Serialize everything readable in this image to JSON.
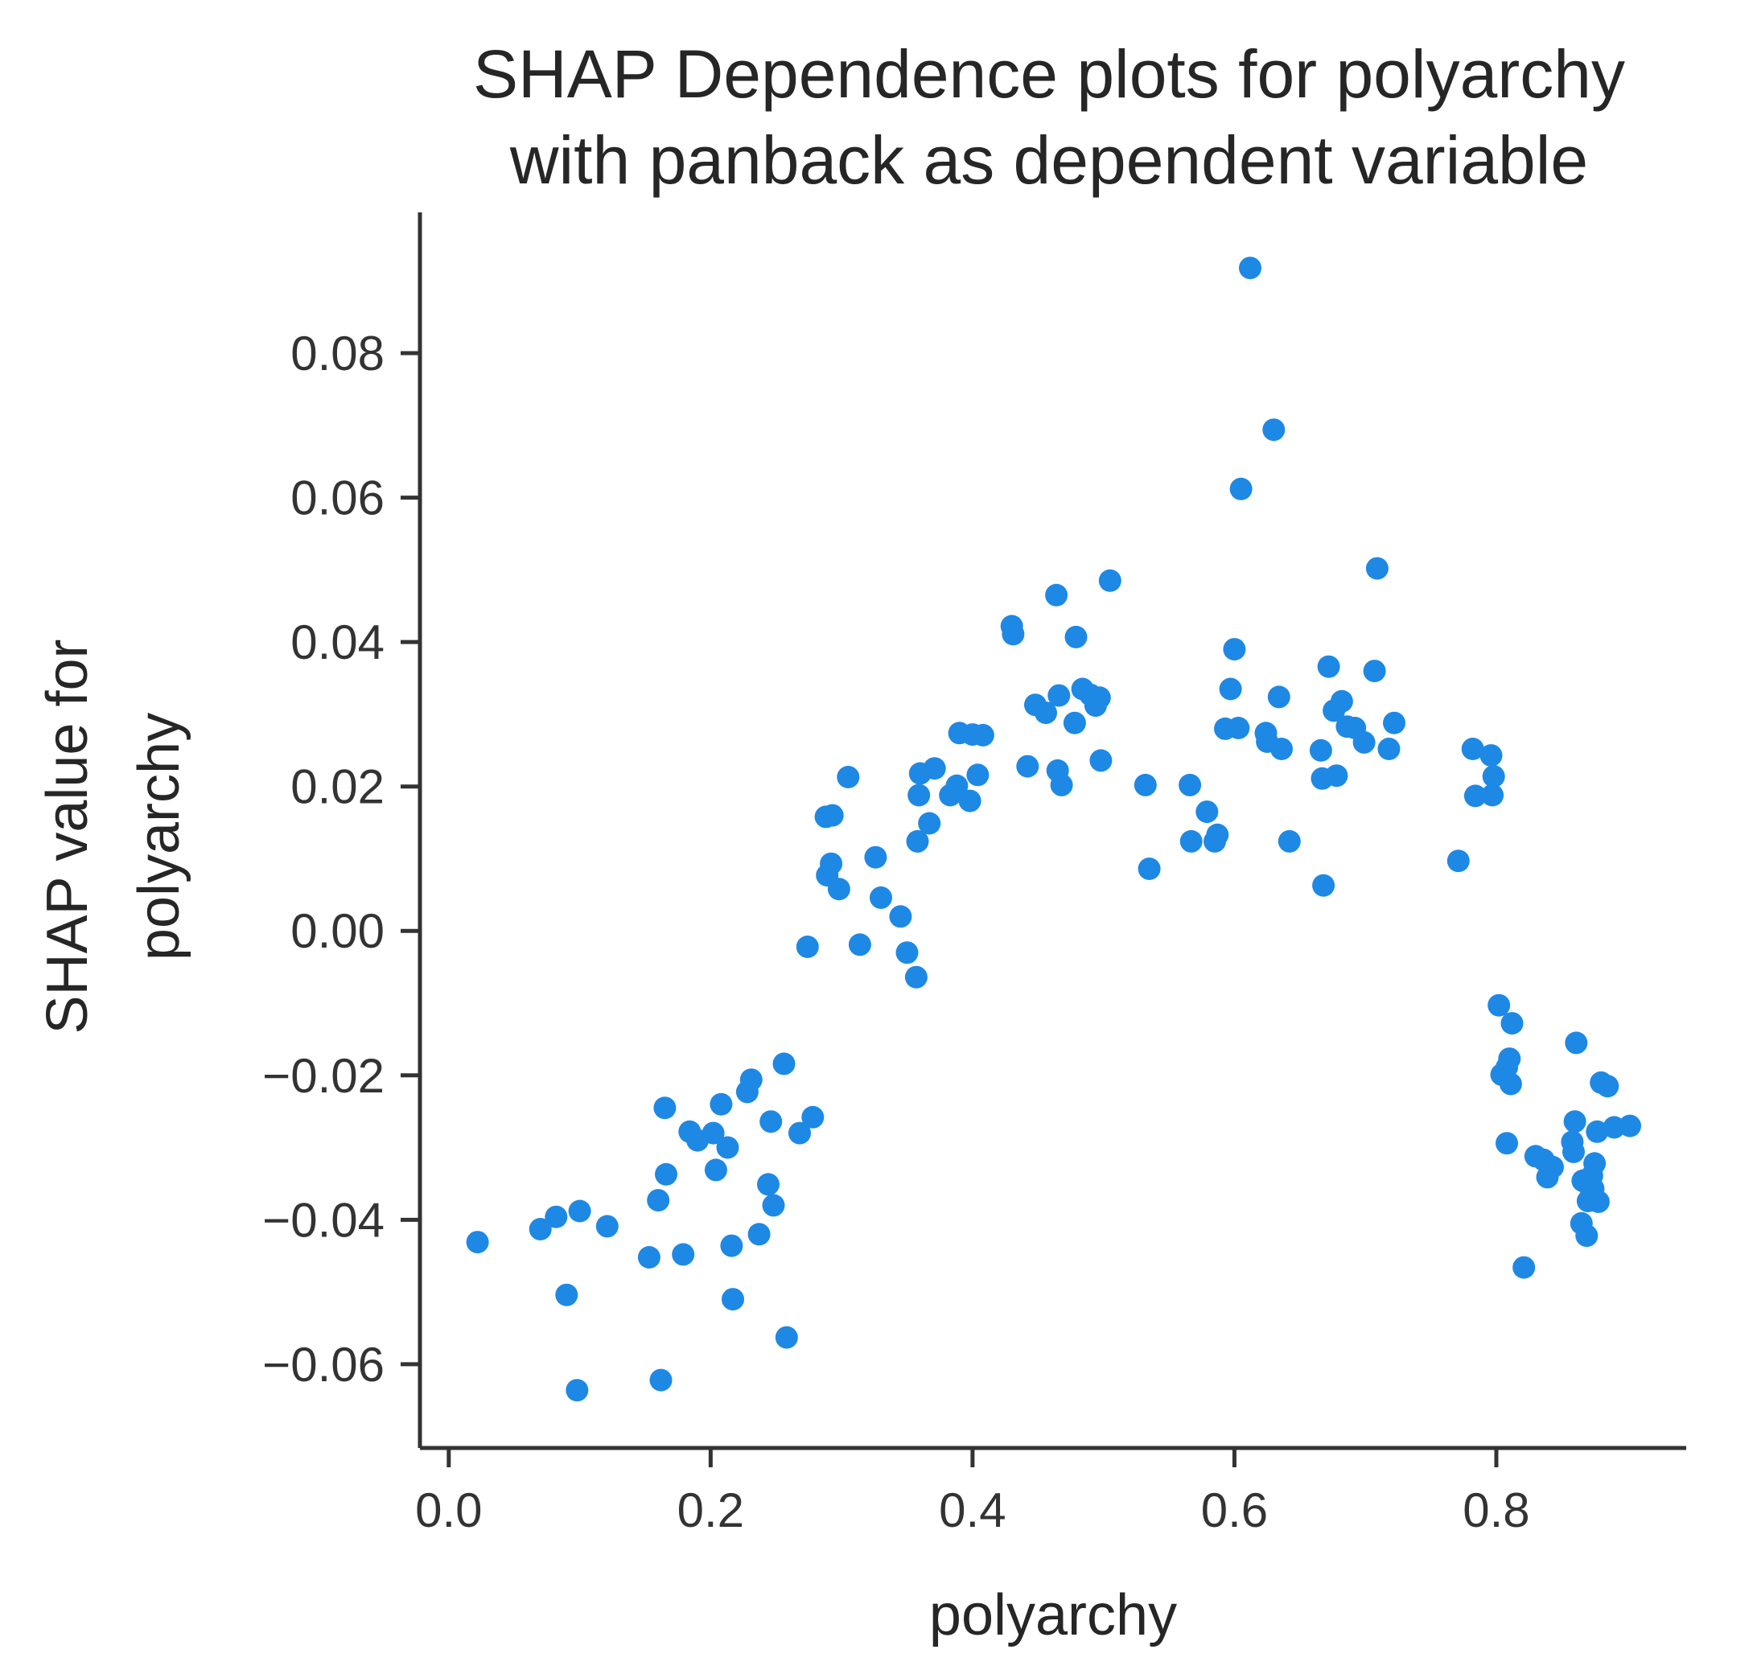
{
  "chart_data": {
    "type": "scatter",
    "title_lines": [
      "SHAP Dependence plots for polyarchy",
      "with panback as dependent variable"
    ],
    "xlabel": "polyarchy",
    "ylabel_lines": [
      "SHAP value for",
      "polyarchy"
    ],
    "xlim": [
      -0.022,
      0.945
    ],
    "ylim": [
      -0.0716,
      0.0995
    ],
    "xticks": [
      0.0,
      0.2,
      0.4,
      0.6,
      0.8
    ],
    "xtick_labels": [
      "0.0",
      "0.2",
      "0.4",
      "0.6",
      "0.8"
    ],
    "yticks": [
      -0.06,
      -0.04,
      -0.02,
      0.0,
      0.02,
      0.04,
      0.06,
      0.08
    ],
    "ytick_labels": [
      "−0.06",
      "−0.04",
      "−0.02",
      "0.00",
      "0.02",
      "0.04",
      "0.06",
      "0.08"
    ],
    "grid": false,
    "marker_color": "#1e88e5",
    "points": [
      [
        0.022,
        -0.0431
      ],
      [
        0.07,
        -0.0413
      ],
      [
        0.082,
        -0.0396
      ],
      [
        0.09,
        -0.0504
      ],
      [
        0.098,
        -0.0636
      ],
      [
        0.1,
        -0.0388
      ],
      [
        0.121,
        -0.0409
      ],
      [
        0.153,
        -0.0452
      ],
      [
        0.16,
        -0.0373
      ],
      [
        0.162,
        -0.0622
      ],
      [
        0.165,
        -0.0245
      ],
      [
        0.166,
        -0.0337
      ],
      [
        0.179,
        -0.0448
      ],
      [
        0.184,
        -0.0278
      ],
      [
        0.19,
        -0.029
      ],
      [
        0.202,
        -0.028
      ],
      [
        0.204,
        -0.0331
      ],
      [
        0.208,
        -0.024
      ],
      [
        0.213,
        -0.03
      ],
      [
        0.216,
        -0.0436
      ],
      [
        0.217,
        -0.051
      ],
      [
        0.228,
        -0.0223
      ],
      [
        0.231,
        -0.0206
      ],
      [
        0.237,
        -0.042
      ],
      [
        0.244,
        -0.0351
      ],
      [
        0.246,
        -0.0264
      ],
      [
        0.248,
        -0.038
      ],
      [
        0.256,
        -0.0184
      ],
      [
        0.258,
        -0.0563
      ],
      [
        0.268,
        -0.028
      ],
      [
        0.274,
        -0.0022
      ],
      [
        0.278,
        -0.0258
      ],
      [
        0.288,
        0.0158
      ],
      [
        0.289,
        0.0077
      ],
      [
        0.292,
        0.0093
      ],
      [
        0.293,
        0.016
      ],
      [
        0.298,
        0.0058
      ],
      [
        0.305,
        0.0213
      ],
      [
        0.314,
        -0.0019
      ],
      [
        0.326,
        0.0102
      ],
      [
        0.33,
        0.0046
      ],
      [
        0.345,
        0.002
      ],
      [
        0.35,
        -0.003
      ],
      [
        0.357,
        -0.0064
      ],
      [
        0.358,
        0.0124
      ],
      [
        0.359,
        0.0188
      ],
      [
        0.36,
        0.0218
      ],
      [
        0.367,
        0.0149
      ],
      [
        0.371,
        0.0225
      ],
      [
        0.383,
        0.0188
      ],
      [
        0.388,
        0.0201
      ],
      [
        0.39,
        0.0274
      ],
      [
        0.398,
        0.018
      ],
      [
        0.4,
        0.0272
      ],
      [
        0.404,
        0.0216
      ],
      [
        0.408,
        0.0271
      ],
      [
        0.43,
        0.0422
      ],
      [
        0.431,
        0.0411
      ],
      [
        0.442,
        0.0228
      ],
      [
        0.448,
        0.0313
      ],
      [
        0.456,
        0.0302
      ],
      [
        0.464,
        0.0465
      ],
      [
        0.465,
        0.0222
      ],
      [
        0.466,
        0.0326
      ],
      [
        0.468,
        0.0202
      ],
      [
        0.478,
        0.0288
      ],
      [
        0.479,
        0.0407
      ],
      [
        0.484,
        0.0335
      ],
      [
        0.49,
        0.0327
      ],
      [
        0.494,
        0.0312
      ],
      [
        0.497,
        0.0323
      ],
      [
        0.498,
        0.0236
      ],
      [
        0.505,
        0.0485
      ],
      [
        0.532,
        0.0202
      ],
      [
        0.535,
        0.0086
      ],
      [
        0.566,
        0.0202
      ],
      [
        0.567,
        0.0124
      ],
      [
        0.579,
        0.0165
      ],
      [
        0.585,
        0.0124
      ],
      [
        0.587,
        0.0133
      ],
      [
        0.593,
        0.028
      ],
      [
        0.597,
        0.0335
      ],
      [
        0.6,
        0.039
      ],
      [
        0.603,
        0.0281
      ],
      [
        0.605,
        0.0612
      ],
      [
        0.612,
        0.0918
      ],
      [
        0.624,
        0.0274
      ],
      [
        0.625,
        0.0262
      ],
      [
        0.63,
        0.0694
      ],
      [
        0.634,
        0.0324
      ],
      [
        0.636,
        0.0252
      ],
      [
        0.642,
        0.0124
      ],
      [
        0.666,
        0.025
      ],
      [
        0.667,
        0.0211
      ],
      [
        0.668,
        0.0063
      ],
      [
        0.672,
        0.0366
      ],
      [
        0.676,
        0.0305
      ],
      [
        0.678,
        0.0215
      ],
      [
        0.682,
        0.0318
      ],
      [
        0.686,
        0.0283
      ],
      [
        0.692,
        0.0281
      ],
      [
        0.699,
        0.0261
      ],
      [
        0.707,
        0.036
      ],
      [
        0.709,
        0.0502
      ],
      [
        0.718,
        0.0252
      ],
      [
        0.722,
        0.0288
      ],
      [
        0.771,
        0.0097
      ],
      [
        0.782,
        0.0252
      ],
      [
        0.784,
        0.0187
      ],
      [
        0.796,
        0.0243
      ],
      [
        0.797,
        0.0188
      ],
      [
        0.798,
        0.0214
      ],
      [
        0.802,
        -0.0103
      ],
      [
        0.804,
        -0.0199
      ],
      [
        0.808,
        -0.0189
      ],
      [
        0.808,
        -0.0294
      ],
      [
        0.81,
        -0.0177
      ],
      [
        0.811,
        -0.0212
      ],
      [
        0.812,
        -0.0128
      ],
      [
        0.821,
        -0.0466
      ],
      [
        0.83,
        -0.0312
      ],
      [
        0.836,
        -0.0317
      ],
      [
        0.839,
        -0.0341
      ],
      [
        0.843,
        -0.0327
      ],
      [
        0.858,
        -0.0292
      ],
      [
        0.859,
        -0.0306
      ],
      [
        0.86,
        -0.0264
      ],
      [
        0.861,
        -0.0155
      ],
      [
        0.865,
        -0.0405
      ],
      [
        0.866,
        -0.0346
      ],
      [
        0.869,
        -0.0422
      ],
      [
        0.87,
        -0.0374
      ],
      [
        0.871,
        -0.0353
      ],
      [
        0.873,
        -0.0339
      ],
      [
        0.874,
        -0.0357
      ],
      [
        0.875,
        -0.0322
      ],
      [
        0.877,
        -0.0278
      ],
      [
        0.878,
        -0.0375
      ],
      [
        0.88,
        -0.021
      ],
      [
        0.885,
        -0.0215
      ],
      [
        0.89,
        -0.0272
      ],
      [
        0.902,
        -0.027
      ]
    ]
  }
}
